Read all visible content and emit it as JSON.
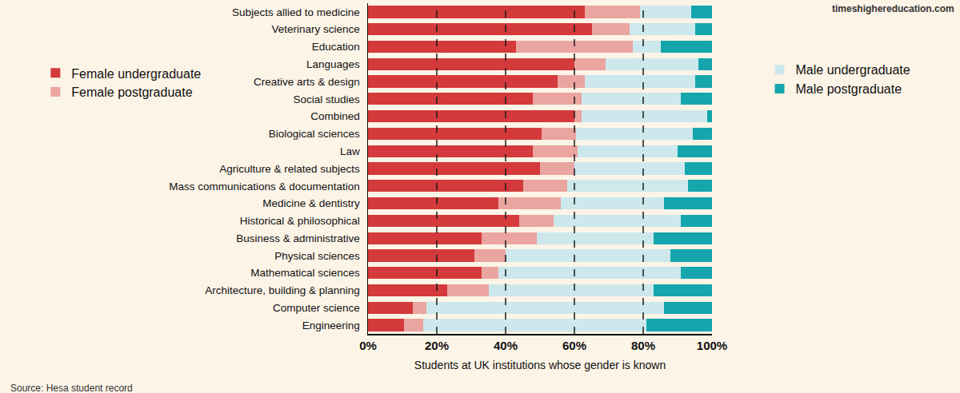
{
  "chart_data": {
    "type": "bar",
    "orientation": "horizontal",
    "stacked": true,
    "grid": true,
    "legend": "sides",
    "x_label": "Students at UK institutions whose gender is known",
    "source": "Source: Hesa student record",
    "website": "timeshighereducation.com",
    "categories": [
      "Subjects allied to medicine",
      "Veterinary science",
      "Education",
      "Languages",
      "Creative arts & design",
      "Social studies",
      "Combined",
      "Biological sciences",
      "Law",
      "Agriculture & related subjects",
      "Mass communications & documentation",
      "Medicine & dentistry",
      "Historical & philosophical",
      "Business & administrative",
      "Physical sciences",
      "Mathematical sciences",
      "Architecture, building & planning",
      "Computer science",
      "Engineering"
    ],
    "series": [
      {
        "name": "Female undergraduate",
        "color": "#d4393b",
        "values": [
          63,
          65,
          43,
          60,
          55,
          48,
          60,
          50.5,
          48,
          50,
          45,
          38,
          44,
          33,
          31,
          33,
          23,
          13,
          10.5
        ]
      },
      {
        "name": "Female postgraduate",
        "color": "#eba5a0",
        "values": [
          16,
          11,
          34,
          9,
          8,
          14,
          2,
          10,
          13,
          10,
          13,
          18,
          10,
          16,
          9,
          5,
          12,
          4,
          5.5
        ]
      },
      {
        "name": "Male undergraduate",
        "color": "#cde8ec",
        "values": [
          15,
          19,
          8,
          27,
          32,
          29,
          36.5,
          34,
          29,
          32,
          35,
          30,
          37,
          34,
          48,
          53,
          48,
          69,
          65
        ]
      },
      {
        "name": "Male postgraduate",
        "color": "#15a5ad",
        "values": [
          6,
          5,
          15,
          4,
          5,
          9,
          1.5,
          5.5,
          10,
          8,
          7,
          14,
          9,
          17,
          12,
          9,
          17,
          14,
          19
        ]
      }
    ],
    "xlim": [
      0,
      100
    ],
    "xticks": [
      {
        "value": 0,
        "label": "0%"
      },
      {
        "value": 20,
        "label": "20%"
      },
      {
        "value": 40,
        "label": "40%"
      },
      {
        "value": 60,
        "label": "60%"
      },
      {
        "value": 80,
        "label": "80%"
      },
      {
        "value": 100,
        "label": "100%"
      }
    ]
  }
}
